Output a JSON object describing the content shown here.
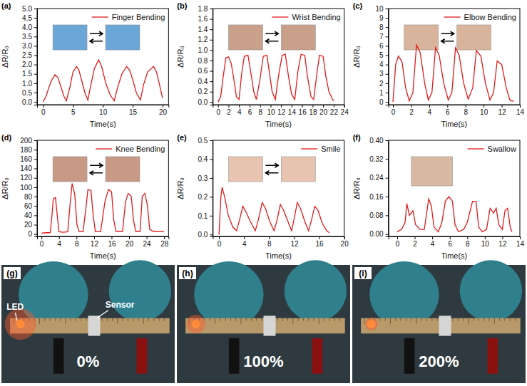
{
  "chart_data": [
    {
      "type": "line",
      "panel_label": "(a)",
      "x_label": "Time(s)",
      "y_label": "ΔR/R₀",
      "legend": "upper right",
      "grid": false,
      "xlim": [
        -1,
        21
      ],
      "ylim": [
        -0.15,
        5
      ],
      "xticks": [
        0,
        5,
        10,
        15,
        20
      ],
      "yticks": [
        {
          "value": 0,
          "label": "0.0"
        },
        0.5,
        {
          "value": 1,
          "label": "1.0"
        },
        1.5,
        {
          "value": 2,
          "label": "2.0"
        },
        2.5,
        {
          "value": 3,
          "label": "3.0"
        },
        3.5,
        {
          "value": 4,
          "label": "4.0"
        },
        4.5,
        {
          "value": 5,
          "label": "5.0"
        }
      ],
      "x": [
        0,
        0.5,
        1,
        1.5,
        2,
        2.5,
        3,
        3.5,
        3.9,
        4.5,
        5,
        5.6,
        6,
        6.5,
        7,
        7.5,
        8,
        8.6,
        9.3,
        9.8,
        10.5,
        11.2,
        11.9,
        12.5,
        13.2,
        14,
        14.5,
        15,
        15.6,
        16.3,
        16.8,
        17.5,
        18.5,
        19,
        19.5,
        20
      ],
      "series": [
        {
          "name": "Finger Bending",
          "color": "#e31a1c",
          "values": [
            0,
            0.3,
            0.8,
            1.2,
            1.45,
            1.3,
            0.8,
            0.3,
            0.05,
            0.8,
            1.6,
            1.9,
            1.7,
            1.1,
            0.5,
            0.1,
            0.9,
            1.8,
            2.25,
            1.9,
            1.0,
            0.4,
            0.05,
            0.8,
            1.5,
            1.9,
            1.7,
            1.2,
            0.5,
            0.1,
            0.9,
            1.6,
            1.9,
            1.6,
            0.9,
            0.2
          ]
        }
      ]
    },
    {
      "type": "line",
      "panel_label": "(b)",
      "x_label": "Time(s)",
      "y_label": "ΔR/R₀",
      "legend": "upper right",
      "grid": false,
      "xlim": [
        -1,
        24
      ],
      "ylim": [
        -0.05,
        1.8
      ],
      "xticks": [
        0,
        2,
        4,
        6,
        8,
        10,
        12,
        14,
        16,
        18,
        20,
        22,
        24
      ],
      "yticks": [
        {
          "value": 0,
          "label": "0.0"
        },
        0.2,
        0.4,
        0.6,
        0.8,
        {
          "value": 1,
          "label": "1.0"
        },
        1.2,
        1.4,
        1.6,
        1.8
      ],
      "x": [
        0,
        0.5,
        1,
        1.5,
        2,
        2.5,
        3,
        3.5,
        4,
        4.5,
        5,
        5.7,
        6.2,
        6.8,
        7.3,
        8,
        8.6,
        9.3,
        9.8,
        10.3,
        10.9,
        11.5,
        12.2,
        12.8,
        13.4,
        14,
        14.6,
        15.2,
        15.8,
        16.5,
        17,
        17.7,
        18.2,
        18.8,
        19.3,
        20,
        20.5,
        21.1,
        21.8,
        22
      ],
      "series": [
        {
          "name": "Wrist Bending",
          "color": "#e31a1c",
          "values": [
            0,
            0.1,
            0.5,
            0.85,
            0.87,
            0.75,
            0.45,
            0.1,
            0.05,
            0.55,
            0.88,
            0.9,
            0.6,
            0.2,
            0.05,
            0.45,
            0.88,
            0.9,
            0.55,
            0.2,
            0.05,
            0.5,
            0.9,
            0.92,
            0.5,
            0.15,
            0.05,
            0.6,
            0.92,
            0.9,
            0.5,
            0.1,
            0.05,
            0.55,
            0.9,
            0.88,
            0.5,
            0.2,
            0.05,
            0.02
          ]
        }
      ]
    },
    {
      "type": "line",
      "panel_label": "(c)",
      "x_label": "Time(s)",
      "y_label": "ΔR/R₀",
      "legend": "upper right",
      "grid": false,
      "xlim": [
        -0.5,
        14
      ],
      "ylim": [
        -0.3,
        10
      ],
      "xticks": [
        0,
        2,
        4,
        6,
        8,
        10,
        12,
        14
      ],
      "yticks": [
        0,
        1,
        2,
        3,
        4,
        5,
        6,
        7,
        8,
        9,
        10
      ],
      "x": [
        0,
        0.3,
        0.6,
        1.0,
        1.4,
        1.8,
        2.2,
        2.6,
        3.0,
        3.5,
        3.9,
        4.3,
        4.7,
        5.1,
        5.6,
        6.1,
        6.5,
        6.9,
        7.3,
        7.8,
        8.3,
        8.8,
        9.2,
        9.7,
        10.2,
        10.7,
        11.1,
        11.5,
        12.0,
        12.5,
        12.9,
        13.3
      ],
      "series": [
        {
          "name": "Elbow Bending",
          "color": "#e31a1c",
          "values": [
            0,
            4.0,
            4.9,
            4.3,
            1.5,
            0.1,
            1.0,
            6.1,
            5.3,
            2.0,
            0.2,
            1.0,
            5.8,
            5.0,
            2.0,
            0.2,
            1.0,
            5.8,
            5.0,
            2.0,
            0.3,
            1.5,
            5.5,
            4.9,
            2.0,
            0.2,
            1.0,
            4.4,
            4.0,
            1.5,
            0.2,
            0.05
          ]
        }
      ]
    },
    {
      "type": "line",
      "panel_label": "(d)",
      "x_label": "Time(s)",
      "y_label": "ΔR/R₀",
      "legend": "upper right",
      "grid": false,
      "xlim": [
        -1,
        29
      ],
      "ylim": [
        -5,
        200
      ],
      "xticks": [
        0,
        4,
        8,
        12,
        16,
        20,
        24,
        28
      ],
      "yticks": [
        0,
        20,
        40,
        60,
        80,
        100,
        120,
        140,
        160,
        180,
        200
      ],
      "x": [
        0,
        1,
        2,
        2.4,
        2.7,
        3.2,
        3.6,
        4,
        5,
        6,
        6.5,
        7,
        7.6,
        8.1,
        8.6,
        9.5,
        10.2,
        10.6,
        11.3,
        11.8,
        12.3,
        13.5,
        14.5,
        15.3,
        16,
        16.5,
        17,
        18.5,
        19.2,
        19.8,
        20.5,
        21,
        21.5,
        22.5,
        23,
        23.6,
        24.2,
        24.7,
        25.5,
        27,
        28
      ],
      "series": [
        {
          "name": "Knee Bending",
          "color": "#e31a1c",
          "values": [
            2,
            3,
            3,
            40,
            75,
            78,
            40,
            5,
            4,
            5,
            60,
            108,
            85,
            20,
            5,
            5,
            60,
            95,
            93,
            40,
            5,
            5,
            70,
            95,
            90,
            30,
            6,
            6,
            70,
            87,
            80,
            30,
            6,
            6,
            80,
            87,
            60,
            10,
            6,
            5,
            5
          ]
        }
      ]
    },
    {
      "type": "line",
      "panel_label": "(e)",
      "x_label": "Time(s)",
      "y_label": "ΔR/R₀",
      "legend": "upper right",
      "grid": false,
      "xlim": [
        -1,
        20
      ],
      "ylim": [
        -0.01,
        0.5
      ],
      "xticks": [
        0,
        4,
        8,
        12,
        16,
        20
      ],
      "yticks": [
        {
          "value": 0,
          "label": "0.0"
        },
        0.1,
        0.2,
        0.3,
        0.4,
        0.5
      ],
      "x": [
        0,
        0.3,
        0.5,
        0.9,
        1.5,
        2.2,
        2.8,
        3.3,
        3.8,
        4.3,
        5,
        5.8,
        6.3,
        6.9,
        7.4,
        8.1,
        8.8,
        9.3,
        9.8,
        10.3,
        11,
        11.6,
        12.1,
        12.5,
        13,
        13.7,
        14.3,
        14.8,
        15.3,
        15.8,
        16.5,
        17.2,
        17.6
      ],
      "series": [
        {
          "name": "Smile",
          "color": "#e31a1c",
          "values": [
            0,
            0.2,
            0.25,
            0.2,
            0.1,
            0.04,
            0.02,
            0.08,
            0.15,
            0.12,
            0.07,
            0.02,
            0.08,
            0.17,
            0.14,
            0.07,
            0.02,
            0.08,
            0.16,
            0.13,
            0.07,
            0.02,
            0.1,
            0.17,
            0.14,
            0.07,
            0.02,
            0.08,
            0.15,
            0.13,
            0.06,
            0.02,
            0.01
          ]
        }
      ]
    },
    {
      "type": "line",
      "panel_label": "(f)",
      "x_label": "Time(s)",
      "y_label": "ΔR/R₀",
      "legend": "upper right",
      "grid": false,
      "xlim": [
        -1,
        14
      ],
      "ylim": [
        -0.01,
        0.4
      ],
      "xticks": [
        0,
        2,
        4,
        6,
        8,
        10,
        12,
        14
      ],
      "yticks": [
        {
          "value": 0,
          "label": "0.00"
        },
        0.08,
        0.16,
        0.24,
        0.32,
        {
          "value": 0.4,
          "label": "0.40"
        }
      ],
      "x": [
        0,
        0.5,
        0.9,
        1.1,
        1.4,
        1.8,
        2.1,
        2.6,
        3.1,
        3.4,
        3.6,
        3.9,
        4.2,
        4.7,
        5.1,
        5.5,
        5.9,
        6.3,
        6.6,
        7.0,
        7.6,
        8.0,
        8.6,
        9.0,
        9.3,
        9.7,
        10.2,
        10.6,
        11.0,
        11.3,
        11.6,
        12.0,
        12.3,
        12.6,
        12.9,
        13.1
      ],
      "series": [
        {
          "name": "Swallow",
          "color": "#e31a1c",
          "values": [
            0.01,
            0.02,
            0.05,
            0.13,
            0.08,
            0.1,
            0.04,
            0.02,
            0.02,
            0.1,
            0.15,
            0.12,
            0.03,
            0.01,
            0.05,
            0.14,
            0.16,
            0.14,
            0.04,
            0.01,
            0.02,
            0.05,
            0.14,
            0.14,
            0.03,
            0.01,
            0.02,
            0.11,
            0.09,
            0.11,
            0.04,
            0.02,
            0.1,
            0.11,
            0.03,
            0.01
          ]
        }
      ]
    }
  ],
  "photos": [
    {
      "label": "(g)",
      "text": "0%",
      "annotations": [
        "LED",
        "Sensor"
      ]
    },
    {
      "label": "(h)",
      "text": "100%"
    },
    {
      "label": "(i)",
      "text": "200%"
    }
  ]
}
